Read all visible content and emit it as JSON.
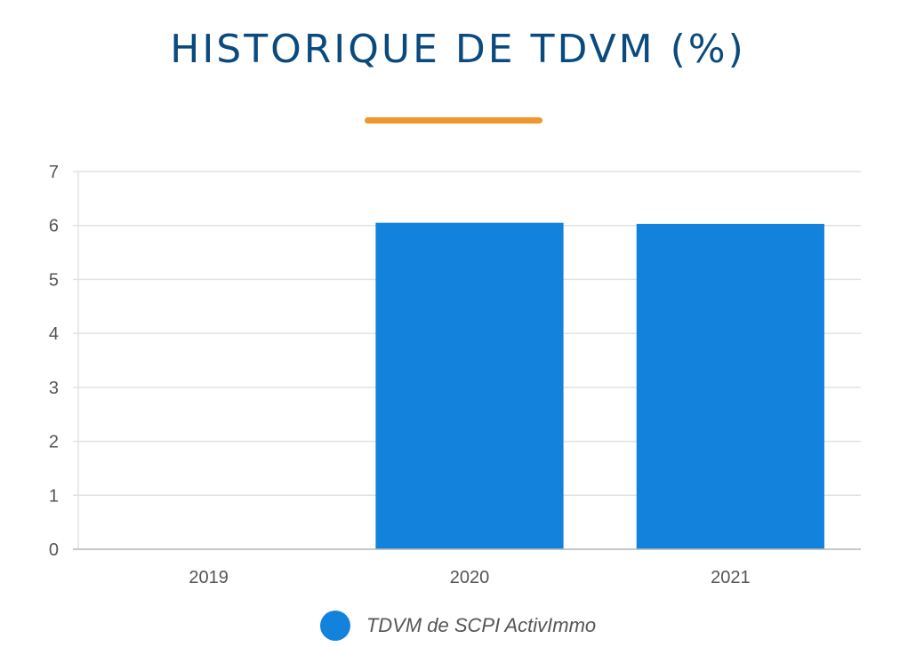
{
  "title": "HISTORIQUE DE TDVM (%)",
  "colors": {
    "title": "#0b4a7d",
    "accent_underline": "#f0962e",
    "bar": "#1282dd",
    "grid": "#e2e2e2",
    "axis": "#bbbbbb"
  },
  "chart_data": {
    "type": "bar",
    "categories": [
      "2019",
      "2020",
      "2021"
    ],
    "series": [
      {
        "name": "TDVM de SCPI ActivImmo",
        "values": [
          0,
          6.05,
          6.03
        ]
      }
    ],
    "ylim": [
      0,
      7
    ],
    "yticks": [
      "0",
      "1",
      "2",
      "3",
      "4",
      "5",
      "6",
      "7"
    ],
    "grid": true,
    "legend": "bottom-center"
  }
}
